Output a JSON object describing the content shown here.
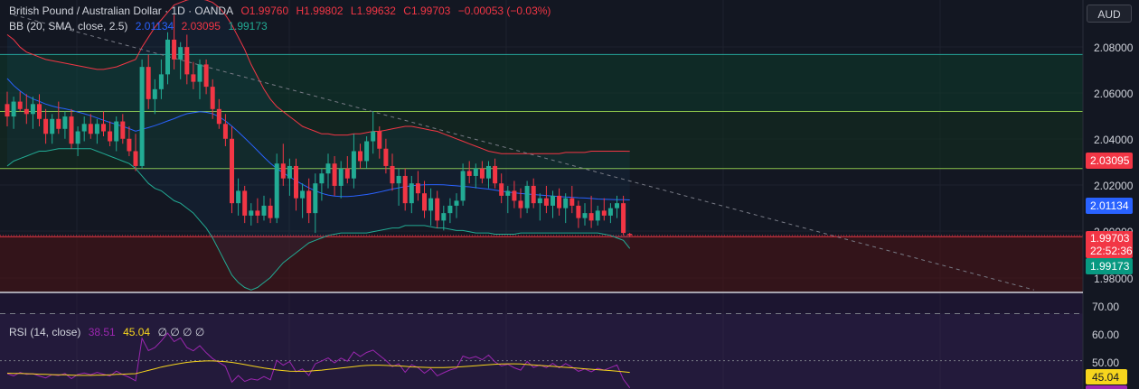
{
  "header": {
    "symbol_title": "British Pound / Australian Dollar · 1D · OANDA",
    "open": "O1.99760",
    "high": "H1.99802",
    "low": "L1.99632",
    "close": "C1.99703",
    "change": "−0.00053 (−0.03%)"
  },
  "bb_legend": {
    "label": "BB (20, SMA, close, 2.5)",
    "basis": "2.01134",
    "upper": "2.03095",
    "lower": "1.99173"
  },
  "rsi_legend": {
    "label": "RSI (14, close)",
    "rsi_value": "38.51",
    "ma_value": "45.04",
    "extras": "∅ ∅ ∅ ∅"
  },
  "currency": "AUD",
  "price_axis": {
    "ticks": [
      "2.08000",
      "2.06000",
      "2.04000",
      "2.02000",
      "2.00000",
      "1.98000"
    ],
    "labels": {
      "upper_band": "2.03095",
      "basis": "2.01134",
      "last_price": "1.99703",
      "countdown": "22:52:36",
      "lower_band": "1.99173"
    }
  },
  "rsi_axis": {
    "ticks": [
      "70.00",
      "60.00",
      "50.00"
    ],
    "ma_label": "45.04"
  },
  "colors": {
    "background": "#131722",
    "up": "#22ab94",
    "down": "#f23645",
    "bb_basis": "#2962ff",
    "bb_upper": "#f23645",
    "bb_lower": "#22ab94",
    "rsi": "#9c27b0",
    "rsi_ma": "#f7d51d"
  },
  "chart_data": {
    "type": "candlestick",
    "price_range": [
      1.974,
      2.092
    ],
    "grid": true,
    "levels": [
      2.07,
      2.047,
      2.024,
      1.9965
    ],
    "trendline": [
      [
        1,
        2.086
      ],
      [
        160,
        1.975
      ]
    ],
    "ohlc": [
      [
        2.05,
        2.055,
        2.041,
        2.045
      ],
      [
        2.045,
        2.053,
        2.04,
        2.051
      ],
      [
        2.051,
        2.055,
        2.047,
        2.048
      ],
      [
        2.048,
        2.054,
        2.042,
        2.046
      ],
      [
        2.046,
        2.053,
        2.04,
        2.05
      ],
      [
        2.05,
        2.054,
        2.041,
        2.044
      ],
      [
        2.044,
        2.048,
        2.034,
        2.038
      ],
      [
        2.038,
        2.046,
        2.034,
        2.044
      ],
      [
        2.044,
        2.051,
        2.038,
        2.04
      ],
      [
        2.04,
        2.047,
        2.036,
        2.045
      ],
      [
        2.045,
        2.048,
        2.032,
        2.034
      ],
      [
        2.034,
        2.041,
        2.029,
        2.039
      ],
      [
        2.039,
        2.045,
        2.035,
        2.042
      ],
      [
        2.042,
        2.046,
        2.036,
        2.038
      ],
      [
        2.038,
        2.044,
        2.034,
        2.042
      ],
      [
        2.042,
        2.047,
        2.037,
        2.039
      ],
      [
        2.039,
        2.043,
        2.033,
        2.035
      ],
      [
        2.035,
        2.045,
        2.031,
        2.043
      ],
      [
        2.043,
        2.046,
        2.034,
        2.036
      ],
      [
        2.036,
        2.041,
        2.029,
        2.031
      ],
      [
        2.031,
        2.038,
        2.023,
        2.025
      ],
      [
        2.025,
        2.068,
        2.024,
        2.065
      ],
      [
        2.065,
        2.07,
        2.048,
        2.052
      ],
      [
        2.052,
        2.06,
        2.046,
        2.056
      ],
      [
        2.056,
        2.068,
        2.052,
        2.062
      ],
      [
        2.062,
        2.079,
        2.058,
        2.076
      ],
      [
        2.076,
        2.086,
        2.064,
        2.068
      ],
      [
        2.068,
        2.075,
        2.06,
        2.073
      ],
      [
        2.073,
        2.078,
        2.058,
        2.062
      ],
      [
        2.062,
        2.067,
        2.056,
        2.059
      ],
      [
        2.059,
        2.068,
        2.052,
        2.066
      ],
      [
        2.066,
        2.068,
        2.054,
        2.057
      ],
      [
        2.057,
        2.06,
        2.044,
        2.048
      ],
      [
        2.048,
        2.052,
        2.04,
        2.042
      ],
      [
        2.042,
        2.046,
        2.033,
        2.036
      ],
      [
        2.036,
        2.041,
        2.006,
        2.01
      ],
      [
        2.01,
        2.02,
        2.005,
        2.015
      ],
      [
        2.015,
        2.017,
        2.002,
        2.005
      ],
      [
        2.005,
        2.01,
        2.001,
        2.007
      ],
      [
        2.007,
        2.012,
        2.002,
        2.005
      ],
      [
        2.005,
        2.013,
        2.003,
        2.009
      ],
      [
        2.009,
        2.012,
        2.002,
        2.004
      ],
      [
        2.004,
        2.03,
        2.002,
        2.026
      ],
      [
        2.026,
        2.034,
        2.017,
        2.02
      ],
      [
        2.02,
        2.028,
        2.013,
        2.025
      ],
      [
        2.025,
        2.028,
        2.007,
        2.012
      ],
      [
        2.012,
        2.018,
        2.004,
        2.015
      ],
      [
        2.015,
        2.02,
        2.002,
        2.006
      ],
      [
        2.006,
        2.022,
        1.998,
        2.018
      ],
      [
        2.018,
        2.024,
        2.011,
        2.022
      ],
      [
        2.022,
        2.03,
        2.016,
        2.026
      ],
      [
        2.026,
        2.029,
        2.013,
        2.017
      ],
      [
        2.017,
        2.027,
        2.012,
        2.024
      ],
      [
        2.024,
        2.029,
        2.018,
        2.02
      ],
      [
        2.02,
        2.038,
        2.016,
        2.031
      ],
      [
        2.031,
        2.034,
        2.024,
        2.027
      ],
      [
        2.027,
        2.037,
        2.024,
        2.035
      ],
      [
        2.035,
        2.047,
        2.03,
        2.039
      ],
      [
        2.039,
        2.041,
        2.028,
        2.032
      ],
      [
        2.032,
        2.036,
        2.022,
        2.025
      ],
      [
        2.025,
        2.03,
        2.015,
        2.018
      ],
      [
        2.018,
        2.024,
        2.009,
        2.021
      ],
      [
        2.021,
        2.024,
        2.007,
        2.01
      ],
      [
        2.01,
        2.021,
        2.006,
        2.018
      ],
      [
        2.018,
        2.023,
        2.011,
        2.014
      ],
      [
        2.014,
        2.019,
        2.004,
        2.007
      ],
      [
        2.007,
        2.016,
        2.001,
        2.012
      ],
      [
        2.012,
        2.015,
        2.0,
        2.003
      ],
      [
        2.003,
        2.009,
        1.999,
        2.006
      ],
      [
        2.006,
        2.012,
        2.002,
        2.009
      ],
      [
        2.009,
        2.014,
        2.004,
        2.011
      ],
      [
        2.011,
        2.026,
        2.009,
        2.023
      ],
      [
        2.023,
        2.027,
        2.018,
        2.021
      ],
      [
        2.021,
        2.026,
        2.016,
        2.024
      ],
      [
        2.024,
        2.027,
        2.018,
        2.02
      ],
      [
        2.02,
        2.027,
        2.016,
        2.025
      ],
      [
        2.025,
        2.028,
        2.016,
        2.018
      ],
      [
        2.018,
        2.022,
        2.01,
        2.013
      ],
      [
        2.013,
        2.017,
        2.006,
        2.015
      ],
      [
        2.015,
        2.019,
        2.008,
        2.011
      ],
      [
        2.011,
        2.016,
        2.004,
        2.008
      ],
      [
        2.008,
        2.019,
        2.006,
        2.017
      ],
      [
        2.017,
        2.02,
        2.008,
        2.01
      ],
      [
        2.01,
        2.014,
        2.003,
        2.012
      ],
      [
        2.012,
        2.017,
        2.006,
        2.009
      ],
      [
        2.009,
        2.015,
        2.004,
        2.013
      ],
      [
        2.013,
        2.016,
        2.005,
        2.008
      ],
      [
        2.008,
        2.014,
        2.002,
        2.012
      ],
      [
        2.012,
        2.017,
        2.006,
        2.009
      ],
      [
        2.009,
        2.011,
        2.0,
        2.004
      ],
      [
        2.004,
        2.01,
        2.001,
        2.006
      ],
      [
        2.006,
        2.013,
        2.0,
        2.003
      ],
      [
        2.003,
        2.009,
        2.001,
        2.007
      ],
      [
        2.007,
        2.012,
        2.003,
        2.005
      ],
      [
        2.005,
        2.01,
        2.002,
        2.008
      ],
      [
        2.008,
        2.013,
        2.004,
        2.01
      ],
      [
        2.01,
        2.013,
        1.997,
        1.998
      ],
      [
        1.9976,
        1.99802,
        1.99632,
        1.99703
      ]
    ],
    "bb_basis": [
      2.0603,
      2.0575,
      2.0553,
      2.0534,
      2.0521,
      2.0511,
      2.05,
      2.0492,
      2.0486,
      2.0481,
      2.0475,
      2.0468,
      2.0461,
      2.0453,
      2.0444,
      2.0435,
      2.0426,
      2.0418,
      2.041,
      2.0401,
      2.0391,
      2.0398,
      2.0405,
      2.0413,
      2.0422,
      2.0432,
      2.0441,
      2.0452,
      2.0461,
      2.0465,
      2.0469,
      2.0467,
      2.0461,
      2.0449,
      2.0432,
      2.0411,
      2.0388,
      2.0363,
      2.0338,
      2.0312,
      2.0286,
      2.0261,
      2.024,
      2.0223,
      2.0206,
      2.0191,
      2.0176,
      2.0162,
      2.015,
      2.014,
      2.0133,
      2.0129,
      2.0127,
      2.0127,
      2.0129,
      2.0132,
      2.0135,
      2.014,
      2.0145,
      2.0151,
      2.0157,
      2.0162,
      2.0167,
      2.017,
      2.0173,
      2.0174,
      2.0175,
      2.0175,
      2.0174,
      2.0172,
      2.017,
      2.0168,
      2.0166,
      2.0163,
      2.016,
      2.0157,
      2.0153,
      2.0149,
      2.0145,
      2.0142,
      2.0139,
      2.0137,
      2.0135,
      2.0133,
      2.0131,
      2.0129,
      2.0127,
      2.0125,
      2.0124,
      2.0122,
      2.0121,
      2.0119,
      2.0117,
      2.0116,
      2.0115,
      2.0114,
      2.0114,
      2.01134
    ],
    "bb_upper": [
      2.078,
      2.076,
      2.073,
      2.071,
      2.07,
      2.069,
      2.068,
      2.0675,
      2.067,
      2.0665,
      2.066,
      2.0655,
      2.065,
      2.0645,
      2.064,
      2.064,
      2.0645,
      2.065,
      2.066,
      2.067,
      2.068,
      2.073,
      2.077,
      2.081,
      2.084,
      2.087,
      2.09,
      2.091,
      2.092,
      2.0925,
      2.0925,
      2.092,
      2.091,
      2.089,
      2.086,
      2.082,
      2.077,
      2.072,
      2.066,
      2.061,
      2.056,
      2.052,
      2.049,
      2.047,
      2.045,
      2.043,
      2.041,
      2.04,
      2.039,
      2.038,
      2.038,
      2.0375,
      2.0375,
      2.0375,
      2.038,
      2.038,
      2.0385,
      2.039,
      2.039,
      2.0395,
      2.04,
      2.0405,
      2.041,
      2.041,
      2.0405,
      2.04,
      2.0395,
      2.039,
      2.038,
      2.037,
      2.036,
      2.035,
      2.034,
      2.033,
      2.032,
      2.031,
      2.0305,
      2.03,
      2.03,
      2.03,
      2.03,
      2.03,
      2.03,
      2.03,
      2.03,
      2.03,
      2.03,
      2.0305,
      2.0305,
      2.0305,
      2.0305,
      2.031,
      2.031,
      2.031,
      2.031,
      2.031,
      2.031,
      2.03095
    ],
    "bb_lower": [
      2.025,
      2.027,
      2.028,
      2.029,
      2.03,
      2.031,
      2.031,
      2.0315,
      2.032,
      2.032,
      2.032,
      2.032,
      2.032,
      2.032,
      2.031,
      2.03,
      2.029,
      2.028,
      2.027,
      2.026,
      2.024,
      2.021,
      2.018,
      2.016,
      2.015,
      2.013,
      2.011,
      2.01,
      2.008,
      2.006,
      2.003,
      2.0,
      1.996,
      1.991,
      1.986,
      1.981,
      1.978,
      1.976,
      1.975,
      1.976,
      1.978,
      1.98,
      1.983,
      1.986,
      1.988,
      1.99,
      1.992,
      1.994,
      1.995,
      1.996,
      1.997,
      1.9975,
      1.998,
      1.998,
      1.998,
      1.998,
      1.998,
      1.9985,
      1.999,
      1.9995,
      2.0,
      2.0,
      2.001,
      2.001,
      2.001,
      2.001,
      2.0005,
      2.0,
      2.0,
      1.9995,
      1.999,
      1.999,
      1.9985,
      1.998,
      1.998,
      1.998,
      1.9975,
      1.9975,
      1.9975,
      1.9975,
      1.998,
      1.998,
      1.998,
      1.998,
      1.998,
      1.998,
      1.998,
      1.998,
      1.998,
      1.998,
      1.998,
      1.998,
      1.998,
      1.9975,
      1.997,
      1.996,
      1.995,
      1.99173
    ],
    "rsi": [
      44.5,
      43.6,
      45.0,
      44.2,
      44.5,
      43.5,
      42.7,
      44.1,
      43.7,
      44.6,
      42.4,
      44.2,
      44.8,
      44.1,
      45.0,
      44.3,
      43.5,
      45.6,
      44.1,
      43.0,
      41.5,
      59.5,
      54.3,
      55.6,
      58.4,
      61.7,
      58.1,
      59.7,
      55.6,
      54.2,
      56.4,
      53.4,
      50.9,
      49.3,
      47.6,
      40.9,
      43.7,
      41.2,
      42.3,
      41.8,
      43.3,
      41.9,
      50.2,
      48.1,
      49.7,
      45.3,
      46.5,
      43.7,
      48.7,
      49.9,
      51.2,
      49.1,
      51.1,
      49.8,
      53.7,
      51.8,
      53.5,
      54.5,
      52.3,
      50.1,
      47.5,
      48.7,
      45.1,
      48.3,
      47.1,
      44.7,
      46.7,
      43.6,
      44.9,
      46.1,
      46.9,
      52.0,
      51.0,
      51.8,
      50.4,
      52.4,
      49.5,
      47.8,
      48.5,
      47.0,
      46.0,
      49.7,
      47.2,
      48.2,
      47.1,
      48.9,
      47.0,
      48.8,
      47.3,
      45.5,
      46.5,
      45.3,
      46.8,
      46.0,
      47.1,
      48.2,
      42.1,
      38.51
    ],
    "rsi_ma": [
      44.7,
      44.6,
      44.6,
      44.5,
      44.4,
      44.3,
      44.2,
      44.1,
      44.0,
      44.0,
      43.9,
      43.8,
      43.8,
      43.8,
      43.9,
      43.9,
      44.0,
      44.2,
      44.3,
      44.4,
      44.5,
      45.2,
      45.9,
      46.6,
      47.3,
      47.9,
      48.4,
      48.9,
      49.3,
      49.6,
      49.8,
      49.9,
      49.9,
      49.8,
      49.6,
      49.3,
      48.9,
      48.4,
      47.9,
      47.4,
      46.9,
      46.5,
      46.1,
      45.8,
      45.6,
      45.5,
      45.5,
      45.6,
      45.8,
      46.0,
      46.3,
      46.6,
      46.9,
      47.2,
      47.5,
      47.8,
      48.0,
      48.1,
      48.1,
      48.0,
      47.9,
      47.8,
      47.6,
      47.4,
      47.3,
      47.2,
      47.1,
      47.1,
      47.1,
      47.2,
      47.3,
      47.5,
      47.7,
      47.9,
      48.1,
      48.3,
      48.5,
      48.6,
      48.7,
      48.7,
      48.6,
      48.4,
      48.2,
      48.0,
      47.8,
      47.6,
      47.4,
      47.2,
      47.0,
      46.8,
      46.6,
      46.4,
      46.2,
      46.0,
      45.8,
      45.6,
      45.3,
      45.04
    ]
  }
}
